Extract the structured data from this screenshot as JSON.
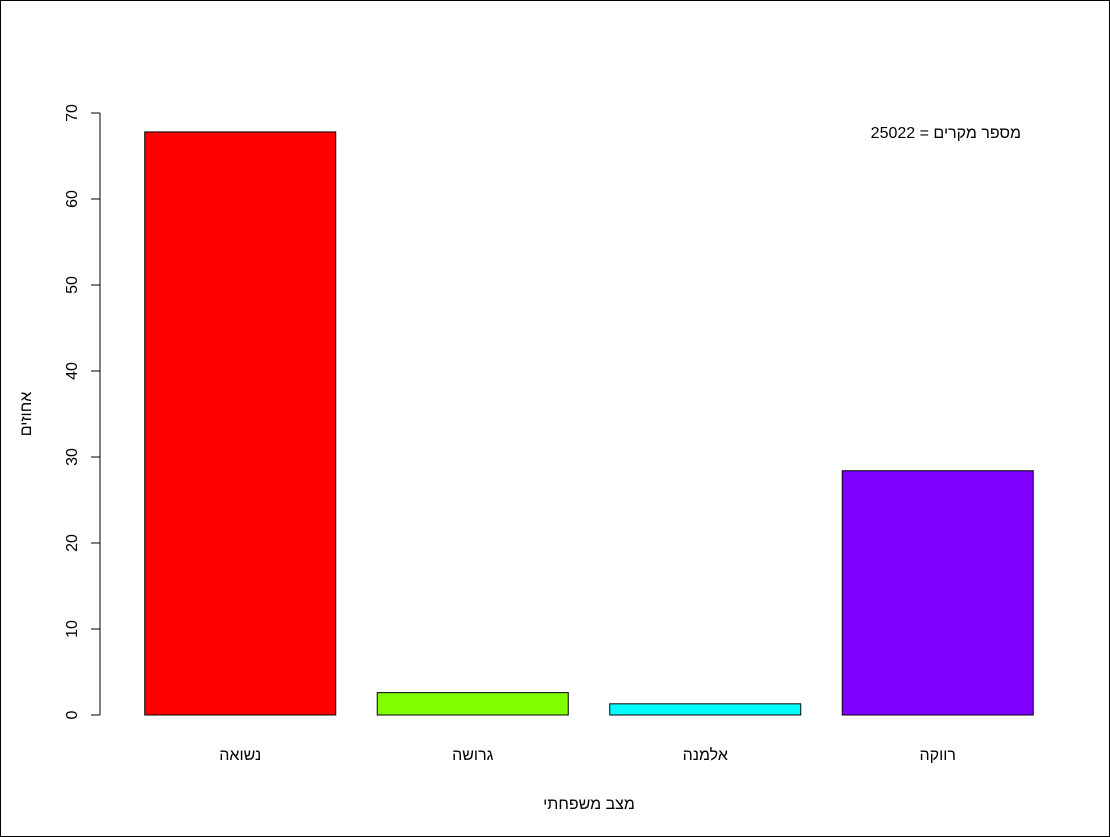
{
  "chart_data": {
    "type": "bar",
    "categories": [
      "נשואה",
      "גרושה",
      "אלמנה",
      "רווקה"
    ],
    "values": [
      67.8,
      2.6,
      1.3,
      28.4
    ],
    "colors": [
      "#FF0000",
      "#80FF00",
      "#00FFFF",
      "#8000FF"
    ],
    "title": "",
    "xlabel": "מצב משפחתי",
    "ylabel": "אחוזים",
    "ylim": [
      0,
      70
    ],
    "yticks": [
      0,
      10,
      20,
      30,
      40,
      50,
      60,
      70
    ],
    "annotation": "מספר מקרים = 25022",
    "grid": false
  }
}
